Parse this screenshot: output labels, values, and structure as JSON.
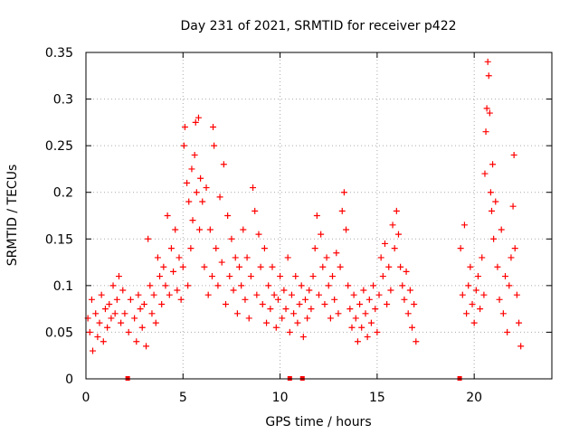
{
  "chart_data": {
    "type": "scatter",
    "title": "Day 231 of 2021, SRMTID for receiver p422",
    "xlabel": "GPS time / hours",
    "ylabel": "SRMTID / TECUs",
    "xlim": [
      0,
      24
    ],
    "ylim": [
      0,
      0.35
    ],
    "x_ticks": [
      0,
      5,
      10,
      15,
      20
    ],
    "x_tick_labels": [
      "0",
      "5",
      "10",
      "15",
      "20"
    ],
    "y_ticks": [
      0,
      0.05,
      0.1,
      0.15,
      0.2,
      0.25,
      0.3,
      0.35
    ],
    "y_tick_labels": [
      "0",
      "0.05",
      "0.1",
      "0.15",
      "0.2",
      "0.25",
      "0.3",
      "0.35"
    ],
    "grid": true,
    "marker": "+",
    "series": [
      {
        "name": "SRMTID",
        "color": "#ff0000",
        "points": [
          [
            0.1,
            0.065
          ],
          [
            0.2,
            0.05
          ],
          [
            0.3,
            0.085
          ],
          [
            0.35,
            0.03
          ],
          [
            0.5,
            0.07
          ],
          [
            0.6,
            0.045
          ],
          [
            0.7,
            0.06
          ],
          [
            0.8,
            0.09
          ],
          [
            0.9,
            0.04
          ],
          [
            1.0,
            0.075
          ],
          [
            1.1,
            0.055
          ],
          [
            1.2,
            0.08
          ],
          [
            1.3,
            0.065
          ],
          [
            1.4,
            0.1
          ],
          [
            1.5,
            0.07
          ],
          [
            1.6,
            0.085
          ],
          [
            1.7,
            0.11
          ],
          [
            1.8,
            0.06
          ],
          [
            1.9,
            0.095
          ],
          [
            2.0,
            0.07
          ],
          [
            2.2,
            0.05
          ],
          [
            2.3,
            0.085
          ],
          [
            2.5,
            0.065
          ],
          [
            2.6,
            0.04
          ],
          [
            2.7,
            0.09
          ],
          [
            2.8,
            0.075
          ],
          [
            2.9,
            0.055
          ],
          [
            3.0,
            0.08
          ],
          [
            3.1,
            0.035
          ],
          [
            3.2,
            0.15
          ],
          [
            3.3,
            0.1
          ],
          [
            3.4,
            0.07
          ],
          [
            3.5,
            0.09
          ],
          [
            3.6,
            0.06
          ],
          [
            3.7,
            0.13
          ],
          [
            3.8,
            0.11
          ],
          [
            3.9,
            0.08
          ],
          [
            4.0,
            0.12
          ],
          [
            4.1,
            0.1
          ],
          [
            4.2,
            0.175
          ],
          [
            4.3,
            0.09
          ],
          [
            4.4,
            0.14
          ],
          [
            4.5,
            0.115
          ],
          [
            4.6,
            0.16
          ],
          [
            4.7,
            0.095
          ],
          [
            4.8,
            0.13
          ],
          [
            4.9,
            0.085
          ],
          [
            5.0,
            0.12
          ],
          [
            5.05,
            0.25
          ],
          [
            5.1,
            0.27
          ],
          [
            5.2,
            0.21
          ],
          [
            5.25,
            0.1
          ],
          [
            5.3,
            0.19
          ],
          [
            5.4,
            0.14
          ],
          [
            5.45,
            0.225
          ],
          [
            5.5,
            0.17
          ],
          [
            5.6,
            0.24
          ],
          [
            5.65,
            0.275
          ],
          [
            5.7,
            0.2
          ],
          [
            5.8,
            0.28
          ],
          [
            5.85,
            0.16
          ],
          [
            5.9,
            0.215
          ],
          [
            6.0,
            0.19
          ],
          [
            6.1,
            0.12
          ],
          [
            6.2,
            0.205
          ],
          [
            6.3,
            0.09
          ],
          [
            6.4,
            0.16
          ],
          [
            6.5,
            0.11
          ],
          [
            6.55,
            0.27
          ],
          [
            6.6,
            0.25
          ],
          [
            6.7,
            0.14
          ],
          [
            6.8,
            0.1
          ],
          [
            6.9,
            0.195
          ],
          [
            7.0,
            0.125
          ],
          [
            7.1,
            0.23
          ],
          [
            7.2,
            0.08
          ],
          [
            7.3,
            0.175
          ],
          [
            7.4,
            0.11
          ],
          [
            7.5,
            0.15
          ],
          [
            7.6,
            0.095
          ],
          [
            7.7,
            0.13
          ],
          [
            7.8,
            0.07
          ],
          [
            7.9,
            0.12
          ],
          [
            8.0,
            0.1
          ],
          [
            8.1,
            0.16
          ],
          [
            8.2,
            0.085
          ],
          [
            8.3,
            0.13
          ],
          [
            8.4,
            0.065
          ],
          [
            8.5,
            0.11
          ],
          [
            8.6,
            0.205
          ],
          [
            8.7,
            0.18
          ],
          [
            8.8,
            0.09
          ],
          [
            8.9,
            0.155
          ],
          [
            9.0,
            0.12
          ],
          [
            9.1,
            0.08
          ],
          [
            9.2,
            0.14
          ],
          [
            9.3,
            0.06
          ],
          [
            9.4,
            0.1
          ],
          [
            9.5,
            0.075
          ],
          [
            9.6,
            0.12
          ],
          [
            9.7,
            0.09
          ],
          [
            9.8,
            0.055
          ],
          [
            9.9,
            0.085
          ],
          [
            10.0,
            0.11
          ],
          [
            10.1,
            0.065
          ],
          [
            10.2,
            0.095
          ],
          [
            10.3,
            0.075
          ],
          [
            10.4,
            0.13
          ],
          [
            10.5,
            0.05
          ],
          [
            10.6,
            0.09
          ],
          [
            10.7,
            0.07
          ],
          [
            10.8,
            0.11
          ],
          [
            10.9,
            0.06
          ],
          [
            11.0,
            0.08
          ],
          [
            11.1,
            0.1
          ],
          [
            11.2,
            0.045
          ],
          [
            11.3,
            0.085
          ],
          [
            11.4,
            0.065
          ],
          [
            11.5,
            0.095
          ],
          [
            11.6,
            0.075
          ],
          [
            11.7,
            0.11
          ],
          [
            11.8,
            0.14
          ],
          [
            11.9,
            0.175
          ],
          [
            12.0,
            0.09
          ],
          [
            12.1,
            0.155
          ],
          [
            12.2,
            0.12
          ],
          [
            12.3,
            0.08
          ],
          [
            12.4,
            0.13
          ],
          [
            12.5,
            0.1
          ],
          [
            12.6,
            0.065
          ],
          [
            12.7,
            0.11
          ],
          [
            12.8,
            0.085
          ],
          [
            12.9,
            0.135
          ],
          [
            13.0,
            0.07
          ],
          [
            13.1,
            0.12
          ],
          [
            13.2,
            0.18
          ],
          [
            13.3,
            0.2
          ],
          [
            13.4,
            0.16
          ],
          [
            13.5,
            0.1
          ],
          [
            13.6,
            0.075
          ],
          [
            13.7,
            0.055
          ],
          [
            13.8,
            0.09
          ],
          [
            13.9,
            0.065
          ],
          [
            14.0,
            0.04
          ],
          [
            14.1,
            0.08
          ],
          [
            14.2,
            0.055
          ],
          [
            14.3,
            0.095
          ],
          [
            14.4,
            0.07
          ],
          [
            14.5,
            0.045
          ],
          [
            14.6,
            0.085
          ],
          [
            14.7,
            0.06
          ],
          [
            14.8,
            0.1
          ],
          [
            14.9,
            0.075
          ],
          [
            15.0,
            0.05
          ],
          [
            15.1,
            0.09
          ],
          [
            15.2,
            0.13
          ],
          [
            15.3,
            0.11
          ],
          [
            15.4,
            0.145
          ],
          [
            15.5,
            0.08
          ],
          [
            15.6,
            0.12
          ],
          [
            15.7,
            0.095
          ],
          [
            15.8,
            0.165
          ],
          [
            15.9,
            0.14
          ],
          [
            16.0,
            0.18
          ],
          [
            16.1,
            0.155
          ],
          [
            16.2,
            0.12
          ],
          [
            16.3,
            0.1
          ],
          [
            16.4,
            0.085
          ],
          [
            16.5,
            0.115
          ],
          [
            16.6,
            0.07
          ],
          [
            16.7,
            0.095
          ],
          [
            16.8,
            0.055
          ],
          [
            16.9,
            0.08
          ],
          [
            17.0,
            0.04
          ],
          [
            19.3,
            0.14
          ],
          [
            19.4,
            0.09
          ],
          [
            19.5,
            0.165
          ],
          [
            19.6,
            0.07
          ],
          [
            19.7,
            0.1
          ],
          [
            19.8,
            0.12
          ],
          [
            19.9,
            0.08
          ],
          [
            20.0,
            0.06
          ],
          [
            20.1,
            0.095
          ],
          [
            20.2,
            0.11
          ],
          [
            20.3,
            0.075
          ],
          [
            20.4,
            0.13
          ],
          [
            20.5,
            0.09
          ],
          [
            20.55,
            0.22
          ],
          [
            20.6,
            0.265
          ],
          [
            20.65,
            0.29
          ],
          [
            20.7,
            0.34
          ],
          [
            20.75,
            0.325
          ],
          [
            20.8,
            0.285
          ],
          [
            20.85,
            0.2
          ],
          [
            20.9,
            0.18
          ],
          [
            20.95,
            0.23
          ],
          [
            21.0,
            0.15
          ],
          [
            21.1,
            0.19
          ],
          [
            21.2,
            0.12
          ],
          [
            21.3,
            0.085
          ],
          [
            21.4,
            0.16
          ],
          [
            21.5,
            0.07
          ],
          [
            21.6,
            0.11
          ],
          [
            21.7,
            0.05
          ],
          [
            21.8,
            0.1
          ],
          [
            21.9,
            0.13
          ],
          [
            22.0,
            0.185
          ],
          [
            22.05,
            0.24
          ],
          [
            22.1,
            0.14
          ],
          [
            22.2,
            0.09
          ],
          [
            22.3,
            0.06
          ],
          [
            22.4,
            0.035
          ]
        ]
      }
    ],
    "missing_data_markers_x": [
      2.15,
      10.5,
      11.15,
      19.25
    ]
  }
}
